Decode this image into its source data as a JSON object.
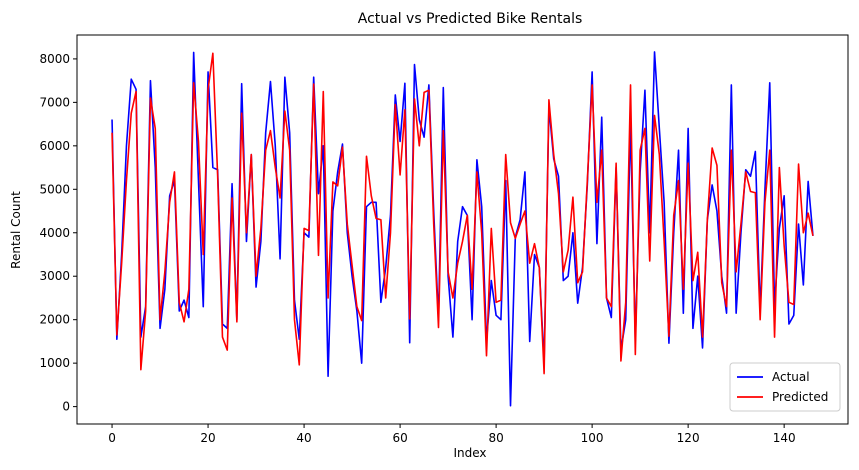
{
  "chart_data": {
    "type": "line",
    "title": "Actual vs Predicted Bike Rentals",
    "xlabel": "Index",
    "ylabel": "Rental Count",
    "xlim": [
      -7.3,
      153.3
    ],
    "ylim": [
      -400,
      8550
    ],
    "xticks": [
      0,
      20,
      40,
      60,
      80,
      100,
      120,
      140
    ],
    "yticks": [
      0,
      1000,
      2000,
      3000,
      4000,
      5000,
      6000,
      7000,
      8000
    ],
    "grid": false,
    "legend_position": "lower right",
    "series": [
      {
        "name": "Actual",
        "color": "#0000ff",
        "values": [
          6606,
          1550,
          3500,
          6000,
          7534,
          7300,
          1600,
          2300,
          7500,
          5500,
          1800,
          2700,
          4850,
          5200,
          2200,
          2450,
          2050,
          8150,
          5200,
          2300,
          7700,
          5500,
          5450,
          1900,
          1800,
          5130,
          2000,
          7430,
          3800,
          5800,
          2750,
          3800,
          6300,
          7480,
          6000,
          3400,
          7580,
          6300,
          2450,
          1550,
          4000,
          3900,
          7580,
          4900,
          6000,
          700,
          4500,
          5400,
          6040,
          4000,
          3000,
          2200,
          1000,
          4600,
          4700,
          4700,
          2400,
          3200,
          4400,
          7170,
          6100,
          7440,
          1470,
          7870,
          6600,
          6200,
          7400,
          4500,
          2000,
          7340,
          3000,
          1600,
          3800,
          4600,
          4400,
          2000,
          5680,
          4600,
          1500,
          2900,
          2100,
          2000,
          5200,
          20,
          3900,
          4300,
          5400,
          1500,
          3500,
          3200,
          1000,
          6900,
          5700,
          5300,
          2900,
          3000,
          4000,
          2380,
          3200,
          5100,
          7700,
          3750,
          6660,
          2500,
          2050,
          5500,
          1300,
          2000,
          6500,
          1520,
          5400,
          7280,
          4000,
          8160,
          6400,
          4700,
          1460,
          4000,
          5900,
          2150,
          6400,
          1800,
          3000,
          1350,
          4300,
          5100,
          4500,
          3000,
          2150,
          7400,
          2150,
          4000,
          5450,
          5300,
          5870,
          2200,
          5000,
          7450,
          2300,
          4100,
          4850,
          1900,
          2100,
          4200,
          2800,
          5180,
          3930
        ]
      },
      {
        "name": "Predicted",
        "color": "#ff0000",
        "values": [
          6300,
          1650,
          3300,
          5200,
          6750,
          7250,
          850,
          2200,
          7100,
          6400,
          2000,
          3100,
          4700,
          5400,
          2400,
          1950,
          2700,
          7450,
          6100,
          3500,
          7300,
          8130,
          5300,
          1600,
          1300,
          4800,
          1950,
          6750,
          4000,
          5800,
          3000,
          4100,
          5900,
          6350,
          5500,
          4800,
          6800,
          5900,
          2000,
          960,
          4100,
          4050,
          7420,
          3480,
          7250,
          2500,
          5170,
          5080,
          5970,
          4200,
          3250,
          2300,
          1980,
          5760,
          4850,
          4330,
          4300,
          2500,
          4000,
          6950,
          5330,
          6830,
          2020,
          7080,
          6000,
          7230,
          7280,
          4200,
          1820,
          6350,
          3100,
          2500,
          3300,
          3800,
          4400,
          2700,
          5400,
          4000,
          1170,
          4100,
          2400,
          2450,
          5800,
          4230,
          3870,
          4200,
          4500,
          3300,
          3750,
          3200,
          760,
          7060,
          5800,
          4900,
          3100,
          3600,
          4820,
          2850,
          3100,
          5200,
          7400,
          4700,
          5900,
          2500,
          2300,
          5600,
          1050,
          2400,
          7400,
          1200,
          5900,
          6400,
          3350,
          6700,
          5800,
          3800,
          1620,
          4400,
          5200,
          2700,
          5600,
          2900,
          3550,
          1600,
          4300,
          5950,
          5550,
          2850,
          2300,
          5900,
          3100,
          4200,
          5400,
          4950,
          4920,
          2000,
          4700,
          5900,
          1600,
          5500,
          3700,
          2400,
          2350,
          5580,
          4000,
          4450,
          3930
        ]
      }
    ]
  }
}
